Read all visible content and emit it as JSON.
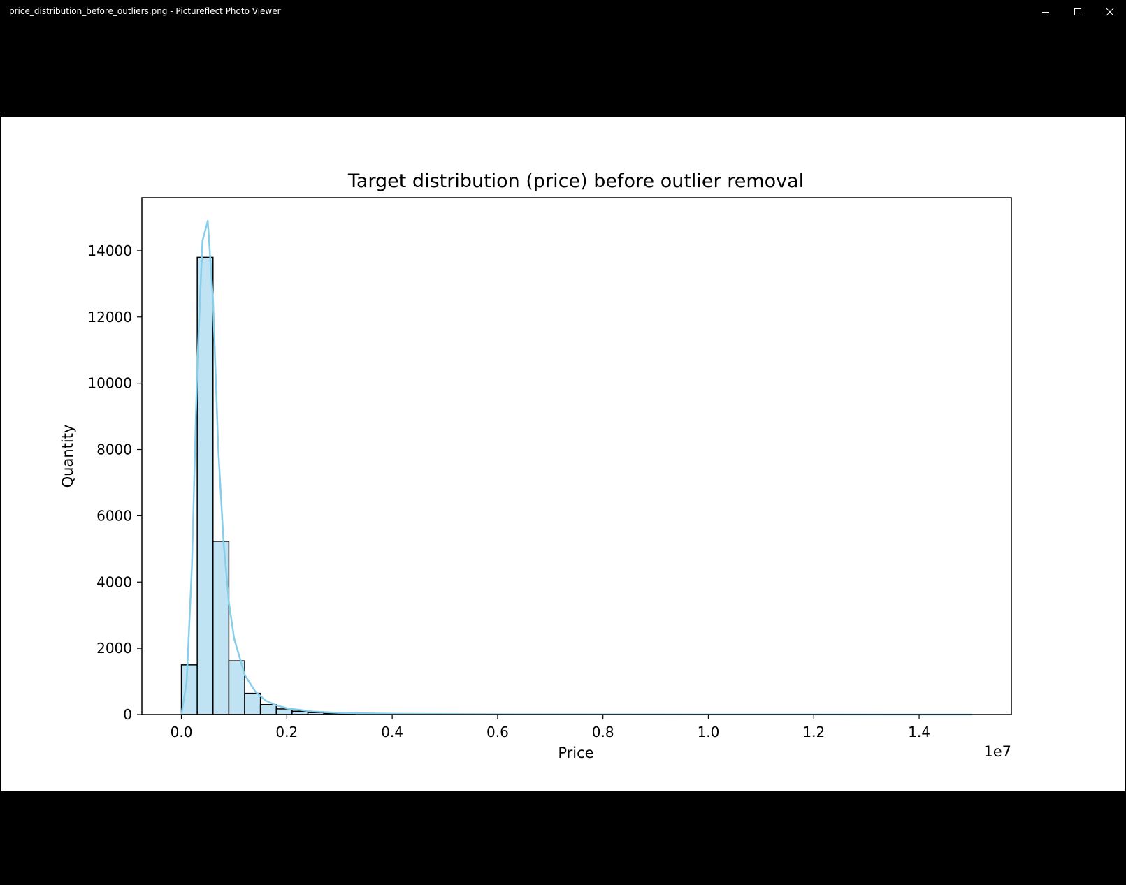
{
  "window": {
    "title": "price_distribution_before_outliers.png - Pictureflect Photo Viewer",
    "controls": {
      "minimize_icon": "minimize-icon",
      "maximize_icon": "maximize-icon",
      "close_icon": "close-icon"
    }
  },
  "colors": {
    "bar_fill": "#bfe3f3",
    "bar_stroke": "#000000",
    "kde_line": "#87ceeb",
    "frame_background": "#000000",
    "image_background": "#ffffff"
  },
  "chart_data": {
    "type": "bar",
    "title": "Target distribution (price) before outlier removal",
    "xlabel": "Price",
    "ylabel": "Quantity",
    "x_offset_label": "1e7",
    "xlim": [
      -0.075,
      1.575
    ],
    "ylim": [
      0,
      15600
    ],
    "x_ticks": [
      0.0,
      0.2,
      0.4,
      0.6,
      0.8,
      1.0,
      1.2,
      1.4
    ],
    "x_tick_labels": [
      "0.0",
      "0.2",
      "0.4",
      "0.6",
      "0.8",
      "1.0",
      "1.2",
      "1.4"
    ],
    "y_ticks": [
      0,
      2000,
      4000,
      6000,
      8000,
      10000,
      12000,
      14000
    ],
    "y_tick_labels": [
      "0",
      "2000",
      "4000",
      "6000",
      "8000",
      "10000",
      "12000",
      "14000"
    ],
    "grid": false,
    "bin_edges": [
      0.0,
      0.03,
      0.06,
      0.09,
      0.12,
      0.15,
      0.18,
      0.21,
      0.24,
      0.27,
      0.3,
      0.33
    ],
    "values": [
      1500,
      13800,
      5230,
      1620,
      640,
      300,
      170,
      100,
      60,
      35,
      20
    ],
    "kde": {
      "x": [
        0.0,
        0.01,
        0.02,
        0.03,
        0.04,
        0.05,
        0.06,
        0.07,
        0.08,
        0.09,
        0.1,
        0.12,
        0.14,
        0.16,
        0.18,
        0.2,
        0.25,
        0.3,
        0.4,
        0.5,
        0.6,
        0.8,
        1.0,
        1.2,
        1.5
      ],
      "y": [
        0,
        1000,
        4500,
        10500,
        14300,
        14900,
        12500,
        8000,
        5200,
        3400,
        2300,
        1200,
        700,
        420,
        280,
        190,
        90,
        50,
        25,
        15,
        10,
        5,
        3,
        2,
        0
      ]
    }
  }
}
